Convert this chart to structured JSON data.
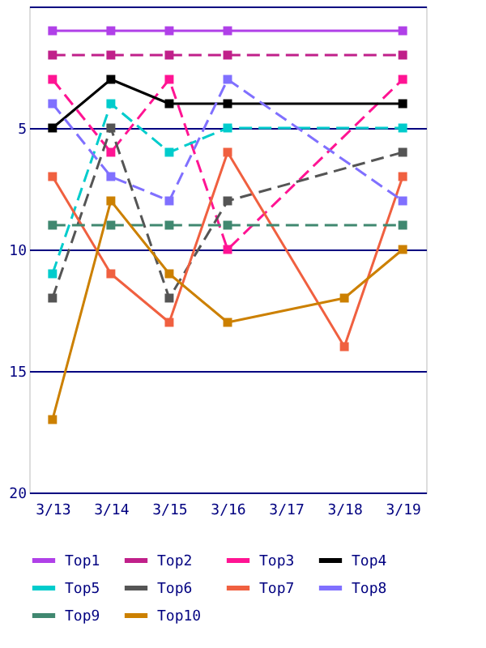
{
  "chart_data": {
    "type": "line",
    "categories": [
      "3/13",
      "3/14",
      "3/15",
      "3/16",
      "3/17",
      "3/18",
      "3/19"
    ],
    "ylim": [
      20,
      0
    ],
    "yticks": [
      {
        "value": 0,
        "label": null
      },
      5,
      10,
      15,
      20
    ],
    "grid": "y",
    "legend": "bottom",
    "marker": "square",
    "series": [
      {
        "name": "Top1",
        "color": "#b040e8",
        "line_style": "solid",
        "values": [
          1,
          1,
          1,
          1,
          null,
          null,
          1
        ]
      },
      {
        "name": "Top2",
        "color": "#c0208a",
        "line_style": "dashed",
        "values": [
          2,
          2,
          2,
          2,
          null,
          null,
          2
        ]
      },
      {
        "name": "Top3",
        "color": "#ff1493",
        "line_style": "dashed",
        "values": [
          3,
          6,
          3,
          10,
          null,
          null,
          3
        ]
      },
      {
        "name": "Top4",
        "color": "#000000",
        "line_style": "solid",
        "values": [
          5,
          3,
          4,
          4,
          null,
          null,
          4
        ]
      },
      {
        "name": "Top5",
        "color": "#00cccc",
        "line_style": "dashed",
        "values": [
          11,
          4,
          6,
          5,
          null,
          null,
          5
        ]
      },
      {
        "name": "Top6",
        "color": "#555555",
        "line_style": "dashed",
        "values": [
          12,
          5,
          12,
          8,
          null,
          null,
          6
        ]
      },
      {
        "name": "Top7",
        "color": "#f06040",
        "line_style": "solid",
        "values": [
          7,
          11,
          13,
          6,
          null,
          14,
          7
        ]
      },
      {
        "name": "Top8",
        "color": "#8070ff",
        "line_style": "dashed",
        "values": [
          4,
          7,
          8,
          3,
          null,
          null,
          8
        ]
      },
      {
        "name": "Top9",
        "color": "#408870",
        "line_style": "dashed",
        "values": [
          9,
          9,
          9,
          9,
          null,
          null,
          9
        ]
      },
      {
        "name": "Top10",
        "color": "#cc8000",
        "line_style": "solid",
        "values": [
          17,
          8,
          11,
          13,
          null,
          12,
          10
        ]
      }
    ]
  }
}
